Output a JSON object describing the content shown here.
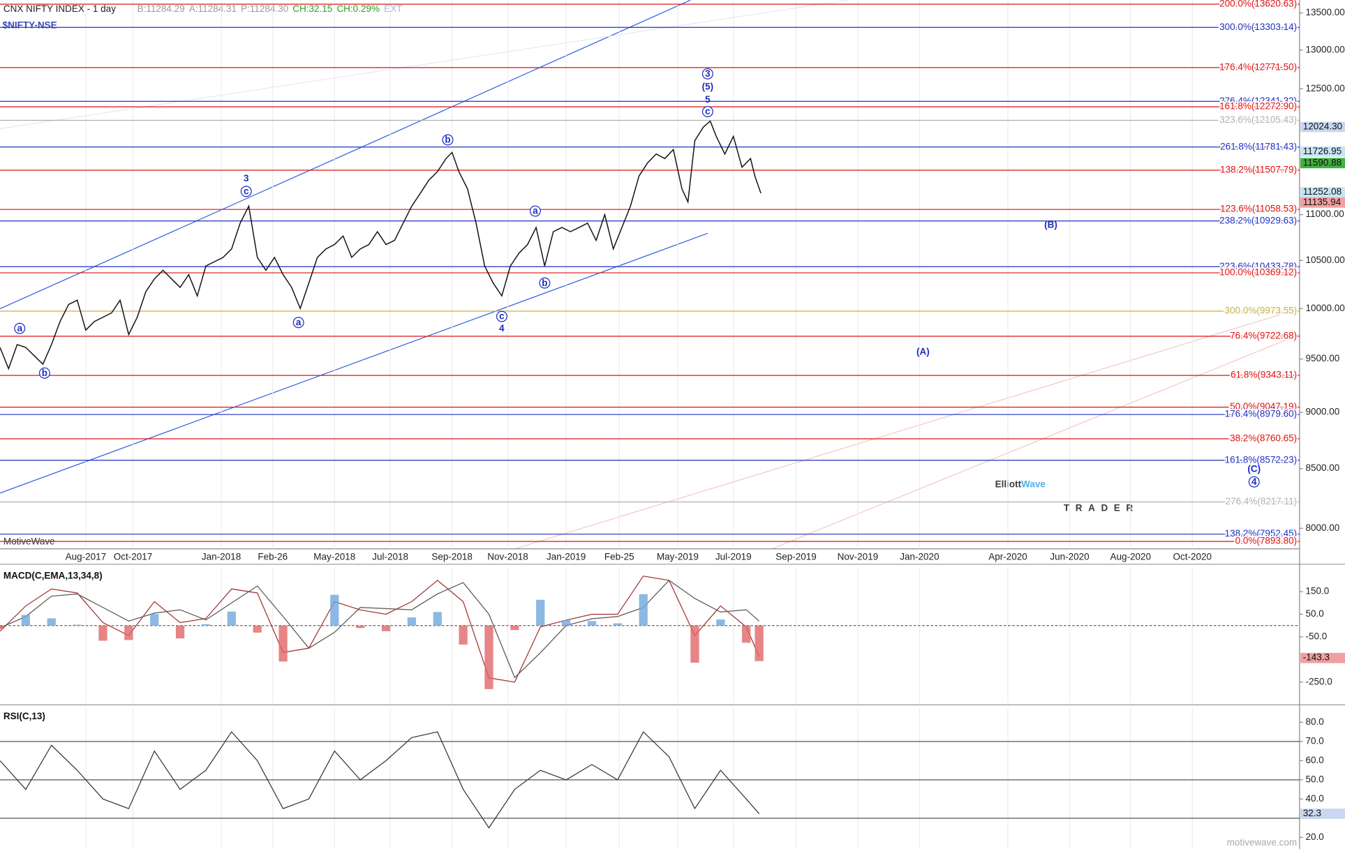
{
  "header": {
    "title": "CNX NIFTY INDEX - 1 day",
    "symbol": "$NIFTY-NSE",
    "quote": [
      {
        "text": "B:11284.29",
        "color": "#9a9a9a"
      },
      {
        "text": "A:11284.31",
        "color": "#9a9a9a"
      },
      {
        "text": "P:11284.30",
        "color": "#9a9a9a"
      },
      {
        "text": "CH:32.15",
        "color": "#2aa02a"
      },
      {
        "text": "CH:0.29%",
        "color": "#2aa02a"
      },
      {
        "text": "EXT",
        "color": "#a0b8e8"
      }
    ],
    "source": "MotiveWave",
    "watermark": "motivewave.com"
  },
  "logo": {
    "word1": "Elliott",
    "word2": "Wave",
    "tagline": "TRADER"
  },
  "chart_data": [
    {
      "type": "line",
      "color": "#111111",
      "log": true,
      "x": [
        0,
        10,
        20,
        30,
        40,
        50,
        60,
        70,
        80,
        90,
        100,
        110,
        120,
        130,
        140,
        150,
        160,
        170,
        180,
        190,
        200,
        210,
        220,
        230,
        240,
        250,
        260,
        270,
        280,
        290,
        300,
        310,
        320,
        330,
        340,
        350,
        360,
        370,
        380,
        390,
        400,
        410,
        420,
        430,
        440,
        450,
        460,
        470,
        480,
        490,
        500,
        510,
        520,
        527,
        535,
        545,
        555,
        565,
        575,
        585,
        595,
        605,
        615,
        625,
        635,
        645,
        655,
        665,
        675,
        685,
        695,
        705,
        715,
        725,
        735,
        745,
        755,
        765,
        775,
        785,
        795,
        802,
        810,
        820,
        828,
        835,
        845,
        855,
        865,
        875,
        880,
        887
      ],
      "values": [
        9613,
        9407,
        9640,
        9613,
        9531,
        9450,
        9640,
        9869,
        10041,
        10085,
        9783,
        9869,
        9912,
        9955,
        10085,
        9740,
        9912,
        10172,
        10305,
        10396,
        10305,
        10217,
        10350,
        10129,
        10441,
        10487,
        10533,
        10624,
        10906,
        11095,
        10533,
        10396,
        10533,
        10350,
        10217,
        10000,
        10261,
        10533,
        10624,
        10671,
        10764,
        10533,
        10624,
        10671,
        10811,
        10671,
        10717,
        10906,
        11095,
        11241,
        11392,
        11491,
        11645,
        11718,
        11491,
        11292,
        10906,
        10441,
        10261,
        10129,
        10441,
        10578,
        10671,
        10858,
        10441,
        10811,
        10858,
        10811,
        10858,
        10906,
        10717,
        11000,
        10624,
        10858,
        11095,
        11441,
        11595,
        11699,
        11645,
        11752,
        11292,
        11143,
        11858,
        12024,
        12096,
        11910,
        11699,
        11910,
        11543,
        11645,
        11441,
        11241
      ],
      "xlim": [
        0,
        1515
      ],
      "xticks": [
        {
          "value": 100,
          "label": "Aug-2017"
        },
        {
          "value": 155,
          "label": "Oct-2017"
        },
        {
          "value": 258,
          "label": "Jan-2018"
        },
        {
          "value": 318,
          "label": "Feb-26"
        },
        {
          "value": 390,
          "label": "May-2018"
        },
        {
          "value": 455,
          "label": "Jul-2018"
        },
        {
          "value": 527,
          "label": "Sep-2018"
        },
        {
          "value": 592,
          "label": "Nov-2018"
        },
        {
          "value": 660,
          "label": "Jan-2019"
        },
        {
          "value": 722,
          "label": "Feb-25"
        },
        {
          "value": 790,
          "label": "May-2019"
        },
        {
          "value": 855,
          "label": "Jul-2019"
        },
        {
          "value": 928,
          "label": "Sep-2019"
        },
        {
          "value": 1000,
          "label": "Nov-2019"
        },
        {
          "value": 1072,
          "label": "Jan-2020"
        },
        {
          "value": 1175,
          "label": "Apr-2020"
        },
        {
          "value": 1247,
          "label": "Jun-2020"
        },
        {
          "value": 1318,
          "label": "Aug-2020"
        },
        {
          "value": 1390,
          "label": "Oct-2020"
        }
      ],
      "ylim": [
        7835,
        13677
      ],
      "yticks": [
        {
          "value": 13500,
          "label": "13500.00"
        },
        {
          "value": 13000,
          "label": "13000.00"
        },
        {
          "value": 12500,
          "label": "12500.00"
        },
        {
          "value": 11000,
          "label": "11000.00"
        },
        {
          "value": 10500,
          "label": "10500.00"
        },
        {
          "value": 10000,
          "label": "10000.00"
        },
        {
          "value": 9500,
          "label": "9500.00"
        },
        {
          "value": 9000,
          "label": "9000.00"
        },
        {
          "value": 8500,
          "label": "8500.00"
        },
        {
          "value": 8000,
          "label": "8000.00"
        }
      ],
      "levels": [
        {
          "value": 13620.63,
          "label": "200.0%(13620.63)",
          "color": "#e01010"
        },
        {
          "value": 13303.14,
          "label": "300.0%(13303.14)",
          "color": "#2030c0"
        },
        {
          "value": 12771.5,
          "label": "176.4%(12771.50)",
          "color": "#e01010"
        },
        {
          "value": 12341.32,
          "label": "276.4%(12341.32)",
          "color": "#2030c0"
        },
        {
          "value": 12272.9,
          "label": "161.8%(12272.90)",
          "color": "#e01010"
        },
        {
          "value": 12105.43,
          "label": "323.6%(12105.43)",
          "color": "#b0b0b0"
        },
        {
          "value": 11781.43,
          "label": "261.8%(11781.43)",
          "color": "#2030c0"
        },
        {
          "value": 11507.79,
          "label": "138.2%(11507.79)",
          "color": "#e01010"
        },
        {
          "value": 11058.53,
          "label": "123.6%(11058.53)",
          "color": "#e01010"
        },
        {
          "value": 10929.63,
          "label": "238.2%(10929.63)",
          "color": "#2030c0"
        },
        {
          "value": 10433.78,
          "label": "223.6%(10433.78)",
          "color": "#2030c0"
        },
        {
          "value": 10369.12,
          "label": "100.0%(10369.12)",
          "color": "#e01010"
        },
        {
          "value": 9973.55,
          "label": "300.0%(9973.55)",
          "color": "#c8b040"
        },
        {
          "value": 9722.68,
          "label": "76.4%(9722.68)",
          "color": "#e01010"
        },
        {
          "value": 9343.11,
          "label": "61.8%(9343.11)",
          "color": "#e01010"
        },
        {
          "value": 9047.19,
          "label": "50.0%(9047.19)",
          "color": "#e01010"
        },
        {
          "value": 8979.6,
          "label": "176.4%(8979.60)",
          "color": "#2030c0"
        },
        {
          "value": 8760.65,
          "label": "38.2%(8760.65)",
          "color": "#e01010"
        },
        {
          "value": 8572.23,
          "label": "161.8%(8572.23)",
          "color": "#2030c0"
        },
        {
          "value": 8217.11,
          "label": "276.4%(8217.11)",
          "color": "#b0b0b0"
        },
        {
          "value": 7952.45,
          "label": "138.2%(7952.45)",
          "color": "#2030c0"
        },
        {
          "value": 7893.8,
          "label": "0.0%(7893.80)",
          "color": "#e01010"
        }
      ],
      "price_tags": [
        {
          "value": 12024.3,
          "label": "12024.30",
          "color": "#c8d8f0"
        },
        {
          "value": 11726.95,
          "label": "11726.95",
          "color": "#c8e4f4"
        },
        {
          "value": 11590.88,
          "label": "11590.88",
          "color": "#40b040"
        },
        {
          "value": 11252.08,
          "label": "11252.08",
          "color": "#c8e4f4"
        },
        {
          "value": 11135.94,
          "label": "11135.94",
          "color": "#f0a0a0"
        }
      ],
      "annotations": [
        {
          "text": "3",
          "x": 287,
          "y": 11412,
          "circled": false
        },
        {
          "text": "c",
          "x": 287,
          "y": 11263,
          "circled": true
        },
        {
          "text": "a",
          "x": 23,
          "y": 9800,
          "circled": true
        },
        {
          "text": "b",
          "x": 52,
          "y": 9366,
          "circled": true
        },
        {
          "text": "a",
          "x": 348,
          "y": 9859,
          "circled": true
        },
        {
          "text": "b",
          "x": 522,
          "y": 11868,
          "circled": true
        },
        {
          "text": "a",
          "x": 624,
          "y": 11040,
          "circled": true
        },
        {
          "text": "b",
          "x": 635,
          "y": 10263,
          "circled": true
        },
        {
          "text": "c",
          "x": 585,
          "y": 9920,
          "circled": true
        },
        {
          "text": "4",
          "x": 585,
          "y": 9800,
          "circled": false
        },
        {
          "text": "3",
          "x": 825,
          "y": 12691,
          "circled": true
        },
        {
          "text": "(5)",
          "x": 825,
          "y": 12527,
          "circled": false
        },
        {
          "text": "5",
          "x": 825,
          "y": 12363,
          "circled": false
        },
        {
          "text": "c",
          "x": 825,
          "y": 12213,
          "circled": true
        },
        {
          "text": "(B)",
          "x": 1225,
          "y": 10888,
          "circled": false
        },
        {
          "text": "(A)",
          "x": 1076,
          "y": 9571,
          "circled": false
        },
        {
          "text": "(C)",
          "x": 1462,
          "y": 8496,
          "circled": false
        },
        {
          "text": "4",
          "x": 1462,
          "y": 8386,
          "circled": true
        }
      ]
    },
    {
      "type": "macd",
      "title": "MACD(C,EMA,13,34,8)",
      "x": [
        0,
        30,
        60,
        90,
        120,
        150,
        180,
        210,
        240,
        270,
        300,
        330,
        360,
        390,
        420,
        450,
        480,
        510,
        540,
        570,
        600,
        630,
        660,
        690,
        720,
        750,
        780,
        810,
        840,
        870,
        885
      ],
      "series": [
        {
          "color": "#a03030",
          "values": [
            -25,
            87,
            162,
            144,
            13,
            -44,
            106,
            13,
            31,
            162,
            144,
            -119,
            -100,
            106,
            69,
            50,
            106,
            200,
            106,
            -231,
            -250,
            -6,
            24,
            50,
            50,
            219,
            200,
            -44,
            87,
            -6,
            -137
          ]
        },
        {
          "color": "#555555",
          "values": [
            -10,
            40,
            130,
            140,
            80,
            20,
            55,
            70,
            25,
            100,
            175,
            40,
            -100,
            -30,
            80,
            75,
            70,
            140,
            190,
            50,
            -230,
            -120,
            0,
            30,
            40,
            80,
            200,
            120,
            60,
            70,
            20
          ]
        },
        {
          "style": "histogram",
          "color": "#6fa8dc",
          "negative_color": "#e06666",
          "values": [
            -15,
            47,
            32,
            4,
            -67,
            -64,
            51,
            -57,
            6,
            62,
            -31,
            -159,
            0,
            136,
            -11,
            -25,
            36,
            60,
            -84,
            -281,
            -20,
            114,
            24,
            20,
            10,
            139,
            0,
            -164,
            27,
            -76,
            -157
          ]
        }
      ],
      "xlim": [
        0,
        1515
      ],
      "ylim": [
        -343,
        256
      ],
      "yticks": [
        {
          "value": 150,
          "label": "150.0"
        },
        {
          "value": 50,
          "label": "50.0"
        },
        {
          "value": -50,
          "label": "-50.0"
        },
        {
          "value": -250,
          "label": "-250.0"
        }
      ],
      "price_tag": {
        "value": -143.3,
        "label": "-143.3",
        "color": "#f0a0a0"
      }
    },
    {
      "type": "rsi",
      "title": "RSI(C,13)",
      "color": "#333333",
      "x": [
        0,
        30,
        60,
        90,
        120,
        150,
        180,
        210,
        240,
        270,
        300,
        330,
        360,
        390,
        420,
        450,
        480,
        510,
        540,
        570,
        600,
        630,
        660,
        690,
        720,
        750,
        780,
        810,
        840,
        870,
        885
      ],
      "values": [
        60,
        45,
        68,
        55,
        40,
        35,
        65,
        45,
        55,
        75,
        60,
        35,
        40,
        65,
        50,
        60,
        72,
        75,
        45,
        25,
        45,
        55,
        50,
        58,
        50,
        75,
        62,
        35,
        55,
        40,
        32.3
      ],
      "xlim": [
        0,
        1515
      ],
      "ylim": [
        14,
        87.3
      ],
      "yticks": [
        {
          "value": 80,
          "label": "80.0"
        },
        {
          "value": 70,
          "label": "70.0"
        },
        {
          "value": 60,
          "label": "60.0"
        },
        {
          "value": 50,
          "label": "50.0"
        },
        {
          "value": 40,
          "label": "40.0"
        },
        {
          "value": 20,
          "label": "20.0"
        }
      ],
      "levels": [
        70,
        50,
        30
      ],
      "price_tag": {
        "value": 32.3,
        "label": "32.3",
        "color": "#c8d8f0"
      }
    }
  ]
}
